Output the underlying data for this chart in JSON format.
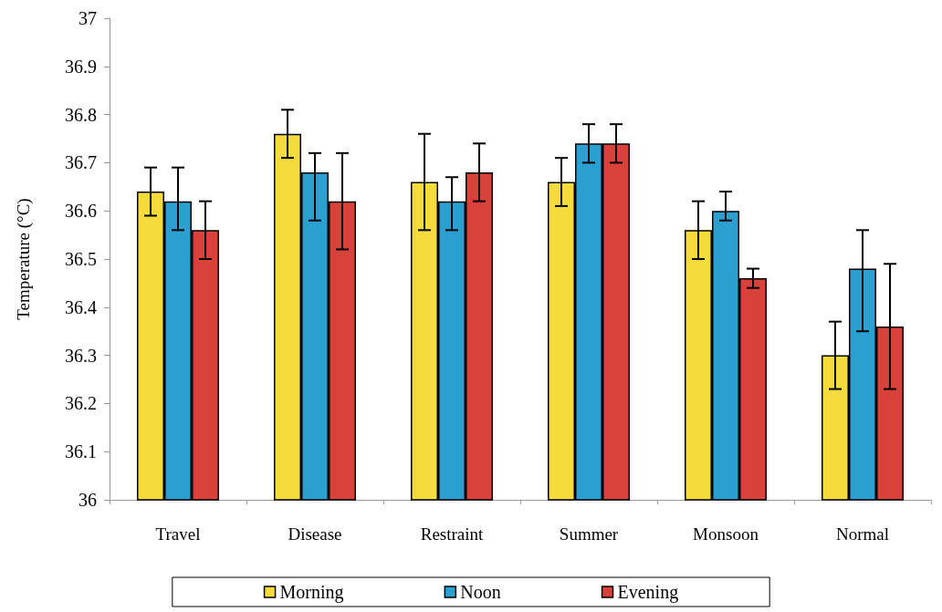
{
  "chart_data": {
    "type": "bar",
    "ylabel": "Temperature (°C)",
    "categories": [
      "Travel",
      "Disease",
      "Restraint",
      "Summer",
      "Monsoon",
      "Normal"
    ],
    "series": [
      {
        "name": "Morning",
        "color": "#f5dc3c",
        "values": [
          36.64,
          36.76,
          36.66,
          36.66,
          36.56,
          36.3
        ],
        "errors": [
          [
            36.59,
            36.69
          ],
          [
            36.71,
            36.81
          ],
          [
            36.56,
            36.76
          ],
          [
            36.61,
            36.71
          ],
          [
            36.5,
            36.62
          ],
          [
            36.23,
            36.37
          ]
        ]
      },
      {
        "name": "Noon",
        "color": "#2a9fd0",
        "values": [
          36.62,
          36.68,
          36.62,
          36.74,
          36.6,
          36.48
        ],
        "errors": [
          [
            36.56,
            36.69
          ],
          [
            36.58,
            36.72
          ],
          [
            36.56,
            36.67
          ],
          [
            36.7,
            36.78
          ],
          [
            36.58,
            36.64
          ],
          [
            36.35,
            36.56
          ]
        ]
      },
      {
        "name": "Evening",
        "color": "#d8423a",
        "values": [
          36.56,
          36.62,
          36.68,
          36.74,
          36.46,
          36.36
        ],
        "errors": [
          [
            36.5,
            36.62
          ],
          [
            36.52,
            36.72
          ],
          [
            36.62,
            36.74
          ],
          [
            36.7,
            36.78
          ],
          [
            36.44,
            36.48
          ],
          [
            36.23,
            36.49
          ]
        ]
      }
    ],
    "ylim": [
      36,
      37
    ],
    "yticks": [
      36,
      36.1,
      36.2,
      36.3,
      36.4,
      36.5,
      36.6,
      36.7,
      36.8,
      36.9,
      37
    ],
    "grid": false,
    "legend": "bottom"
  }
}
